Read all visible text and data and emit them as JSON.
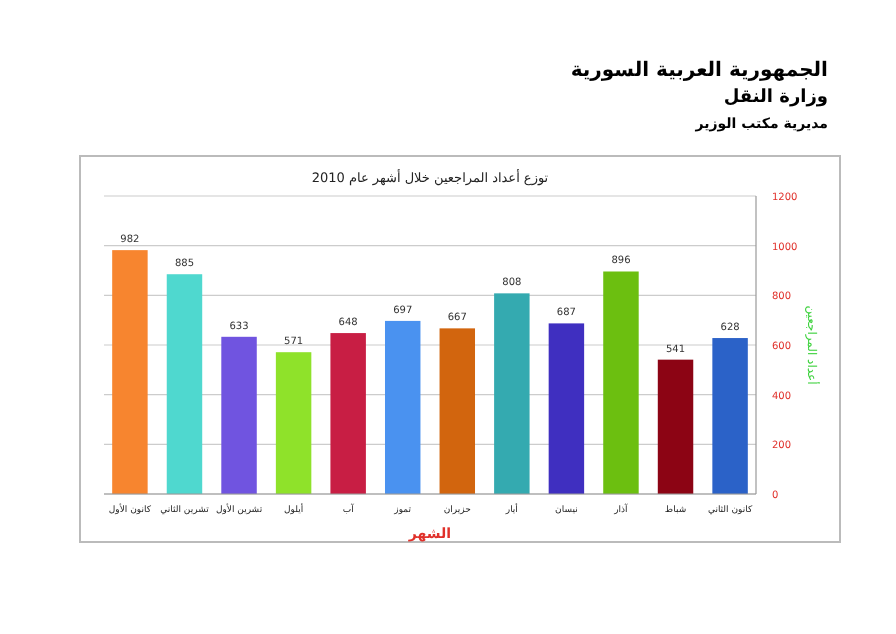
{
  "chart_data": {
    "type": "bar",
    "title": "توزع أعداد المراجعين خلال أشهر عام 2010",
    "xlabel": "الشهر",
    "ylabel": "أعداد المراجعين",
    "annotations": [
      "الجمهورية العربية السورية",
      "وزارة النقل",
      "مديرية مكتب الوزير"
    ],
    "categories": [
      "كانون الأول",
      "تشرين الثاني",
      "تشرين الأول",
      "أيلول",
      "آب",
      "تموز",
      "حزيران",
      "أيار",
      "نيسان",
      "آذار",
      "شباط",
      "كانون الثاني"
    ],
    "values": [
      982,
      885,
      633,
      571,
      648,
      697,
      667,
      808,
      687,
      896,
      541,
      628
    ],
    "colors": [
      "#f7852f",
      "#4fd8cf",
      "#7054e0",
      "#8fe22a",
      "#c81e44",
      "#4a92f0",
      "#d2650e",
      "#34aab0",
      "#3f2fc0",
      "#6cbf10",
      "#8c0414",
      "#2b62c8"
    ],
    "ylim": [
      0,
      1200
    ],
    "yticks": [
      0,
      200,
      400,
      600,
      800,
      1000,
      1200
    ],
    "grid": "y",
    "data_labels": true
  }
}
